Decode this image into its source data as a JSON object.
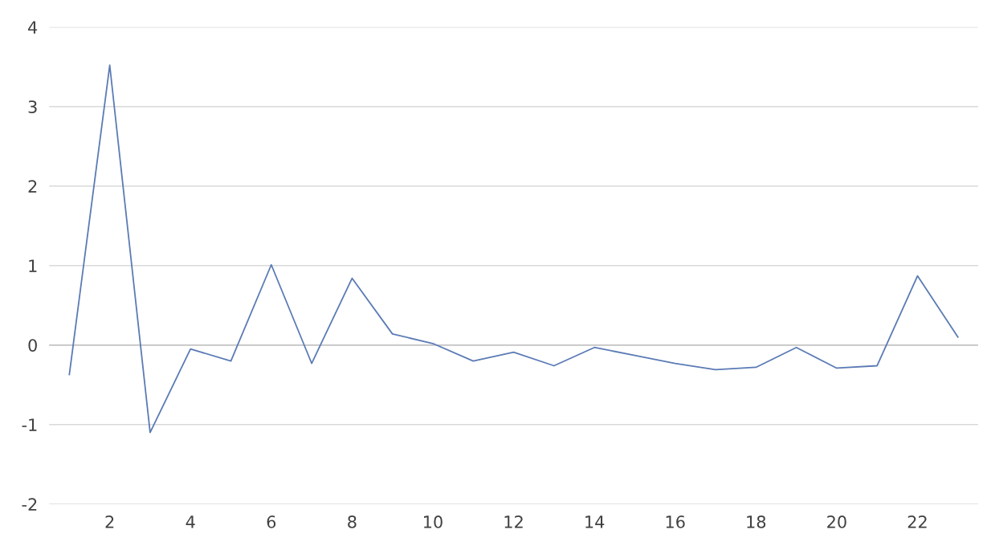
{
  "chart_data": {
    "type": "line",
    "categories": [
      null,
      "2",
      null,
      "4",
      null,
      "6",
      null,
      "8",
      null,
      "10",
      null,
      "12",
      null,
      "14",
      null,
      "16",
      null,
      "18",
      null,
      "20",
      null,
      "22",
      null
    ],
    "series": [
      {
        "color": "#5b7bb5",
        "values": [
          -0.37,
          3.52,
          -1.1,
          -0.05,
          -0.2,
          1.01,
          -0.23,
          0.84,
          0.14,
          0.02,
          -0.2,
          -0.09,
          -0.26,
          -0.03,
          -0.13,
          -0.23,
          -0.31,
          -0.28,
          -0.03,
          -0.29,
          -0.26,
          0.87,
          0.1
        ]
      }
    ],
    "ylim": [
      -2,
      4
    ],
    "yticks": [
      -2,
      -1,
      0,
      1,
      2,
      3,
      4
    ],
    "grid": "y"
  }
}
